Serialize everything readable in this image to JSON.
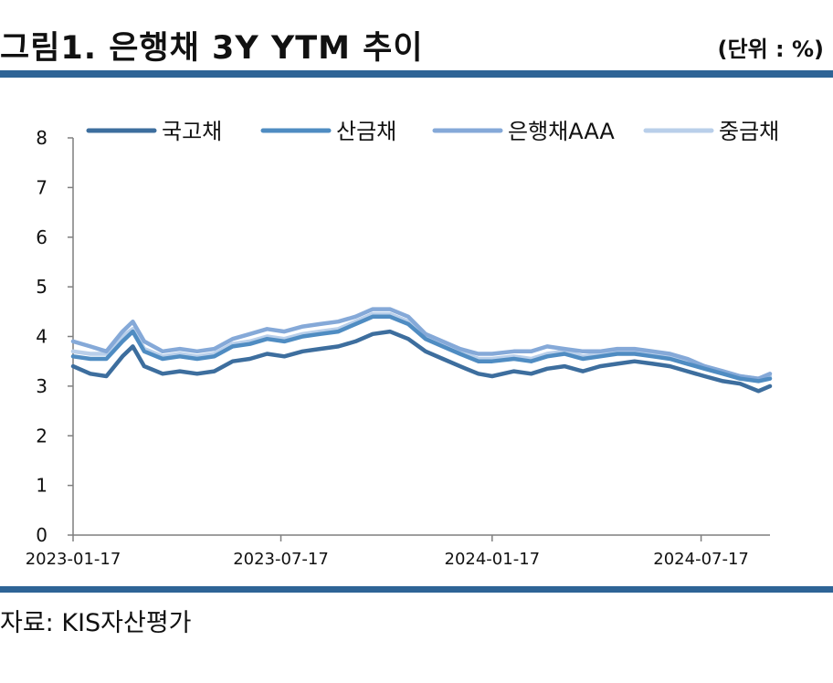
{
  "header": {
    "title": "그림1. 은행채 3Y YTM 추이",
    "unit": "(단위 : %)"
  },
  "footer": {
    "source": "자료: KIS자산평가"
  },
  "colors": {
    "rule": "#2e6496",
    "axis": "#7f7f7f"
  },
  "chart_data": {
    "type": "line",
    "title": "",
    "xlabel": "",
    "ylabel": "",
    "ylim": [
      0,
      8
    ],
    "yticks": [
      "0",
      "1",
      "2",
      "3",
      "4",
      "5",
      "6",
      "7",
      "8"
    ],
    "xlim": [
      "2023-01-17",
      "2024-09-15"
    ],
    "xticks": [
      "2023-01-17",
      "2023-07-17",
      "2024-01-17",
      "2024-07-17"
    ],
    "grid": false,
    "legend_position": "top",
    "x": [
      "2023-01-17",
      "2023-02-01",
      "2023-02-15",
      "2023-03-01",
      "2023-03-10",
      "2023-03-20",
      "2023-04-05",
      "2023-04-20",
      "2023-05-05",
      "2023-05-20",
      "2023-06-05",
      "2023-06-20",
      "2023-07-05",
      "2023-07-20",
      "2023-08-05",
      "2023-08-20",
      "2023-09-05",
      "2023-09-20",
      "2023-10-05",
      "2023-10-20",
      "2023-11-05",
      "2023-11-20",
      "2023-12-05",
      "2023-12-20",
      "2024-01-05",
      "2024-01-17",
      "2024-02-05",
      "2024-02-20",
      "2024-03-05",
      "2024-03-20",
      "2024-04-05",
      "2024-04-20",
      "2024-05-05",
      "2024-05-20",
      "2024-06-05",
      "2024-06-20",
      "2024-07-05",
      "2024-07-20",
      "2024-08-05",
      "2024-08-20",
      "2024-09-05",
      "2024-09-15"
    ],
    "series": [
      {
        "name": "국고채",
        "color": "#3d6e9e",
        "values": [
          3.4,
          3.25,
          3.2,
          3.6,
          3.8,
          3.4,
          3.25,
          3.3,
          3.25,
          3.3,
          3.5,
          3.55,
          3.65,
          3.6,
          3.7,
          3.75,
          3.8,
          3.9,
          4.05,
          4.1,
          3.95,
          3.7,
          3.55,
          3.4,
          3.25,
          3.2,
          3.3,
          3.25,
          3.35,
          3.4,
          3.3,
          3.4,
          3.45,
          3.5,
          3.45,
          3.4,
          3.3,
          3.2,
          3.1,
          3.05,
          2.9,
          3.0
        ]
      },
      {
        "name": "산금채",
        "color": "#4f8cc2",
        "values": [
          3.6,
          3.55,
          3.55,
          3.9,
          4.1,
          3.7,
          3.55,
          3.6,
          3.55,
          3.6,
          3.8,
          3.85,
          3.95,
          3.9,
          4.0,
          4.05,
          4.1,
          4.25,
          4.4,
          4.4,
          4.25,
          3.95,
          3.8,
          3.65,
          3.5,
          3.5,
          3.55,
          3.5,
          3.6,
          3.65,
          3.55,
          3.6,
          3.65,
          3.65,
          3.6,
          3.55,
          3.45,
          3.35,
          3.25,
          3.15,
          3.1,
          3.15
        ]
      },
      {
        "name": "은행채AAA",
        "color": "#85a9d8",
        "values": [
          3.9,
          3.8,
          3.7,
          4.1,
          4.3,
          3.9,
          3.7,
          3.75,
          3.7,
          3.75,
          3.95,
          4.05,
          4.15,
          4.1,
          4.2,
          4.25,
          4.3,
          4.4,
          4.55,
          4.55,
          4.4,
          4.05,
          3.9,
          3.75,
          3.65,
          3.65,
          3.7,
          3.7,
          3.8,
          3.75,
          3.7,
          3.7,
          3.75,
          3.75,
          3.7,
          3.65,
          3.55,
          3.4,
          3.3,
          3.2,
          3.15,
          3.25
        ]
      },
      {
        "name": "중금채",
        "color": "#b9cfea",
        "values": [
          3.7,
          3.65,
          3.65,
          4.0,
          4.15,
          3.75,
          3.6,
          3.65,
          3.6,
          3.65,
          3.85,
          3.9,
          4.0,
          3.95,
          4.05,
          4.1,
          4.15,
          4.3,
          4.45,
          4.45,
          4.3,
          4.0,
          3.85,
          3.7,
          3.55,
          3.55,
          3.6,
          3.55,
          3.65,
          3.7,
          3.6,
          3.65,
          3.7,
          3.7,
          3.65,
          3.6,
          3.5,
          3.4,
          3.3,
          3.2,
          3.15,
          3.2
        ]
      }
    ]
  }
}
